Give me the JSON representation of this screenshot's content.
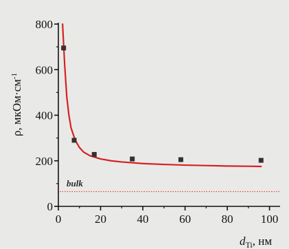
{
  "chart_data": {
    "type": "scatter",
    "x": [
      2.5,
      7.5,
      17,
      35,
      58,
      96
    ],
    "xlim": [
      0,
      105
    ],
    "ylim": [
      0,
      800
    ],
    "xticks": [
      0,
      20,
      40,
      60,
      80,
      100
    ],
    "yticks": [
      0,
      200,
      400,
      600,
      800
    ],
    "xlabel": "d_Ti, нм",
    "xlabel_main": "d",
    "xlabel_sub": "Ti",
    "xlabel_unit": ", нм",
    "ylabel": "ρ, мкОм·см",
    "ylabel_main": "ρ, мкОм·см",
    "ylabel_sup": "-1",
    "series": [
      {
        "kind": "scatter",
        "x": [
          2.5,
          7.5,
          17,
          35,
          58,
          96
        ],
        "y": [
          695,
          290,
          228,
          208,
          205,
          202
        ],
        "color": "#3a2f2f"
      },
      {
        "kind": "fit-line",
        "x": [
          2,
          3,
          4,
          5,
          6,
          8,
          10,
          12,
          15,
          20,
          25,
          30,
          40,
          50,
          60,
          70,
          80,
          90,
          96
        ],
        "y": [
          800,
          620,
          480,
          400,
          345,
          290,
          258,
          238,
          222,
          208,
          200,
          195,
          188,
          184,
          181,
          179,
          177,
          176,
          175
        ],
        "color": "#d62020"
      },
      {
        "kind": "reference-line",
        "y": 65,
        "x_range": [
          0,
          105
        ],
        "label": "bulk",
        "color": "#d64545"
      }
    ],
    "grid": false,
    "legend": false
  },
  "colors": {
    "background": "#e9eae7",
    "axis": "#111111",
    "fit": "#d62020",
    "marker": "#3a2f2f",
    "bulk": "#d64545"
  }
}
